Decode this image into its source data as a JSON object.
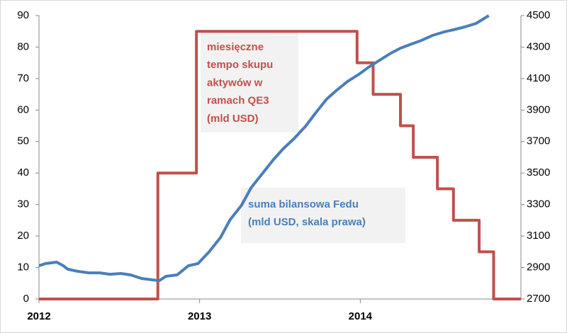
{
  "chart_data": {
    "type": "line",
    "xlim": [
      2012,
      2015
    ],
    "xticks": [
      2012,
      2013,
      2014
    ],
    "ylim": [
      0,
      90
    ],
    "yticks": [
      0,
      10,
      20,
      30,
      40,
      50,
      60,
      70,
      80,
      90
    ],
    "y2lim": [
      2700,
      4500
    ],
    "y2ticks": [
      2700,
      2900,
      3100,
      3300,
      3500,
      3700,
      3900,
      4100,
      4300,
      4500
    ],
    "series": [
      {
        "color": "#c0504d",
        "x": [
          2012,
          2012.74,
          2012.74,
          2012.98,
          2012.98,
          2013.98,
          2013.98,
          2014.08,
          2014.08,
          2014.25,
          2014.25,
          2014.33,
          2014.33,
          2014.48,
          2014.48,
          2014.58,
          2014.58,
          2014.74,
          2014.74,
          2014.83,
          2014.83,
          2015
        ],
        "values": [
          0,
          0,
          40,
          40,
          85,
          85,
          75,
          75,
          65,
          65,
          55,
          55,
          45,
          45,
          35,
          35,
          25,
          25,
          15,
          15,
          0,
          0
        ]
      },
      {
        "color": "#4a7ebb",
        "axis": "y2",
        "x": [
          2012.0,
          2012.04,
          2012.11,
          2012.15,
          2012.18,
          2012.24,
          2012.31,
          2012.38,
          2012.44,
          2012.51,
          2012.57,
          2012.64,
          2012.71,
          2012.75,
          2012.79,
          2012.86,
          2012.93,
          2012.99,
          2013.06,
          2013.13,
          2013.19,
          2013.26,
          2013.32,
          2013.39,
          2013.46,
          2013.52,
          2013.59,
          2013.66,
          2013.72,
          2013.79,
          2013.85,
          2013.92,
          2013.99,
          2014.05,
          2014.12,
          2014.19,
          2014.25,
          2014.32,
          2014.38,
          2014.45,
          2014.52,
          2014.58,
          2014.65,
          2014.72,
          2014.8
        ],
        "values": [
          2911,
          2925,
          2934,
          2912,
          2889,
          2876,
          2866,
          2866,
          2857,
          2862,
          2853,
          2830,
          2821,
          2817,
          2844,
          2853,
          2911,
          2925,
          3001,
          3091,
          3204,
          3294,
          3406,
          3496,
          3586,
          3654,
          3721,
          3798,
          3879,
          3969,
          4023,
          4081,
          4126,
          4171,
          4216,
          4261,
          4293,
          4320,
          4342,
          4374,
          4396,
          4410,
          4428,
          4450,
          4500
        ]
      }
    ],
    "annotations": [
      {
        "lines": [
          "miesięczne",
          "tempo skupu",
          "aktywów w",
          "ramach QE3",
          "(mld USD)"
        ],
        "color": "#c0504d"
      },
      {
        "lines": [
          "suma bilansowa Fedu",
          "(mld USD, skala prawa)"
        ],
        "color": "#4a7ebb"
      }
    ]
  }
}
